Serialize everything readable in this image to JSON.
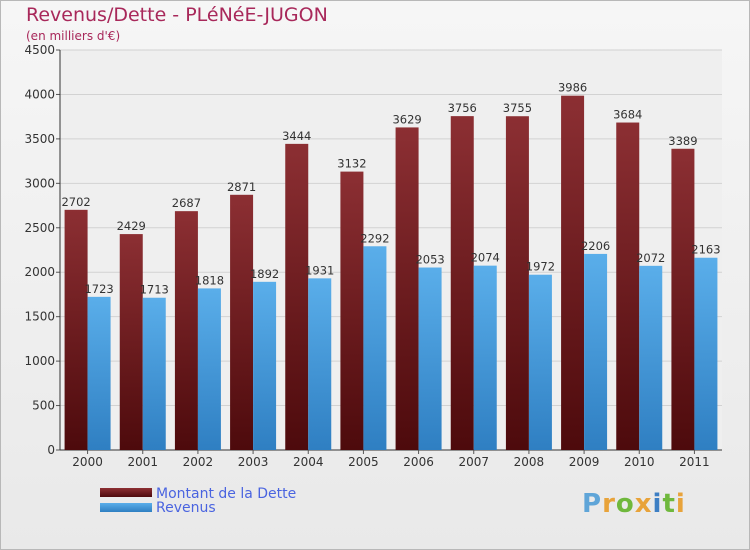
{
  "title": "Revenus/Dette - PLéNéE-JUGON",
  "subtitle": "(en milliers d'€)",
  "logo": {
    "text": "Proxiti",
    "letter_colors": [
      "#5fa5d8",
      "#e8a33a",
      "#6fb83c",
      "#e8a33a",
      "#3d7fc4",
      "#6fb83c",
      "#e8a33a"
    ]
  },
  "colors": {
    "dette": "#7a1a1e",
    "revenus": "#4b9fdf",
    "title": "#a8285a",
    "legend_text": "#4a64e0"
  },
  "chart_data": {
    "type": "bar",
    "title": "Revenus/Dette - PLéNéE-JUGON",
    "subtitle": "(en milliers d'€)",
    "categories": [
      "2000",
      "2001",
      "2002",
      "2003",
      "2004",
      "2005",
      "2006",
      "2007",
      "2008",
      "2009",
      "2010",
      "2011"
    ],
    "series": [
      {
        "name": "Montant de la Dette",
        "values": [
          2702,
          2429,
          2687,
          2871,
          3444,
          3132,
          3629,
          3756,
          3755,
          3986,
          3684,
          3389
        ]
      },
      {
        "name": "Revenus",
        "values": [
          1723,
          1713,
          1818,
          1892,
          1931,
          2292,
          2053,
          2074,
          1972,
          2206,
          2072,
          2163
        ]
      }
    ],
    "ylim": [
      0,
      4500
    ],
    "yticks": [
      0,
      500,
      1000,
      1500,
      2000,
      2500,
      3000,
      3500,
      4000,
      4500
    ],
    "grid": true,
    "legend_position": "bottom-left",
    "data_labels": true
  }
}
